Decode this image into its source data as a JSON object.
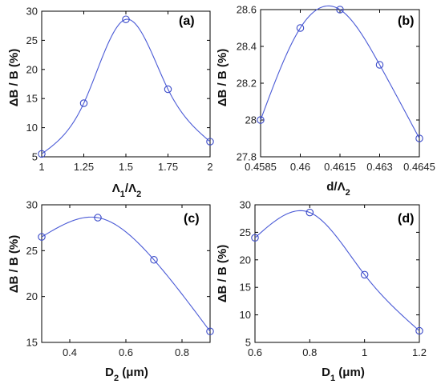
{
  "style": {
    "curve_color": "#4a5ad6",
    "marker_color": "#3a4ac8",
    "axis_color": "#000000"
  },
  "chart_data": [
    {
      "type": "line",
      "panel_label": "(a)",
      "xlabel_main": "Λ",
      "xlabel_sub1": "1",
      "xlabel_mid": "/Λ",
      "xlabel_sub2": "2",
      "xlabel_suffix": "",
      "ylabel": "ΔB / B (%)",
      "xlim": [
        1,
        2
      ],
      "ylim": [
        5,
        30
      ],
      "xticks": [
        1,
        1.25,
        1.5,
        1.75,
        2
      ],
      "xtick_labels": [
        "1",
        "1.25",
        "1.5",
        "1.75",
        "2"
      ],
      "yticks": [
        5,
        10,
        15,
        20,
        25,
        30
      ],
      "ytick_labels": [
        "5",
        "10",
        "15",
        "20",
        "25",
        "30"
      ],
      "x": [
        1,
        1.25,
        1.5,
        1.75,
        2
      ],
      "y": [
        5.5,
        14.2,
        28.6,
        16.6,
        7.6
      ],
      "marker": "open-circle",
      "smooth": true
    },
    {
      "type": "line",
      "panel_label": "(b)",
      "xlabel_main": "d/Λ",
      "xlabel_sub1": "",
      "xlabel_mid": "",
      "xlabel_sub2": "2",
      "xlabel_suffix": "",
      "ylabel": "ΔB / B (%)",
      "xlim": [
        0.4585,
        0.4645
      ],
      "ylim": [
        27.8,
        28.6
      ],
      "xticks": [
        0.4585,
        0.46,
        0.4615,
        0.463,
        0.4645
      ],
      "xtick_labels": [
        "0.4585",
        "0.46",
        "0.4615",
        "0.463",
        "0.4645"
      ],
      "yticks": [
        27.8,
        28.0,
        28.2,
        28.4,
        28.6
      ],
      "ytick_labels": [
        "27.8",
        "28",
        "28.2",
        "28.4",
        "28.6"
      ],
      "x": [
        0.4585,
        0.46,
        0.4615,
        0.463,
        0.4645
      ],
      "y": [
        28.0,
        28.5,
        28.6,
        28.3,
        27.9
      ],
      "marker": "open-circle",
      "smooth": true
    },
    {
      "type": "line",
      "panel_label": "(c)",
      "xlabel_main": "D",
      "xlabel_sub1": "2",
      "xlabel_mid": "",
      "xlabel_sub2": "",
      "xlabel_suffix": " (μm)",
      "ylabel": "ΔB / B (%)",
      "xlim": [
        0.3,
        0.9
      ],
      "ylim": [
        15,
        30
      ],
      "xticks": [
        0.4,
        0.6,
        0.8
      ],
      "xtick_labels": [
        "0.4",
        "0.6",
        "0.8"
      ],
      "yticks": [
        15,
        20,
        25,
        30
      ],
      "ytick_labels": [
        "15",
        "20",
        "25",
        "30"
      ],
      "x": [
        0.3,
        0.5,
        0.7,
        0.9
      ],
      "y": [
        26.5,
        28.6,
        24.0,
        16.2
      ],
      "marker": "open-circle",
      "smooth": true
    },
    {
      "type": "line",
      "panel_label": "(d)",
      "xlabel_main": "D",
      "xlabel_sub1": "1",
      "xlabel_mid": "",
      "xlabel_sub2": "",
      "xlabel_suffix": " (μm)",
      "ylabel": "ΔB / B (%)",
      "xlim": [
        0.6,
        1.2
      ],
      "ylim": [
        5,
        30
      ],
      "xticks": [
        0.6,
        0.8,
        1,
        1.2
      ],
      "xtick_labels": [
        "0.6",
        "0.8",
        "1",
        "1.2"
      ],
      "yticks": [
        5,
        10,
        15,
        20,
        25,
        30
      ],
      "ytick_labels": [
        "5",
        "10",
        "15",
        "20",
        "25",
        "30"
      ],
      "x": [
        0.6,
        0.8,
        1.0,
        1.2
      ],
      "y": [
        24.0,
        28.6,
        17.3,
        7.1
      ],
      "marker": "open-circle",
      "smooth": true
    }
  ]
}
